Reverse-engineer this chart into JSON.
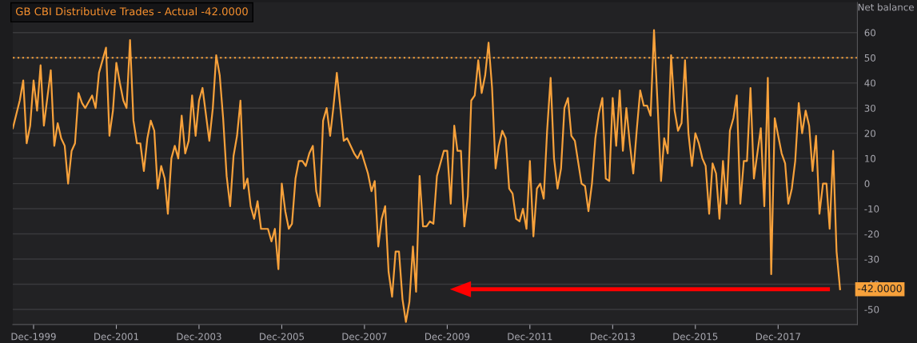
{
  "chart_data": {
    "type": "line",
    "title": "GB CBI Distributive Trades - Actual -42.0000",
    "ylabel": "Net balance",
    "x": [
      "1999-06",
      "1999-08",
      "1999-09",
      "1999-10",
      "1999-11",
      "1999-12",
      "2000-01",
      "2000-02",
      "2000-03",
      "2000-05",
      "2000-06",
      "2000-07",
      "2000-08",
      "2000-09",
      "2000-10",
      "2000-11",
      "2000-12",
      "2001-01",
      "2001-02",
      "2001-03",
      "2001-05",
      "2001-06",
      "2001-07",
      "2001-09",
      "2001-10",
      "2001-11",
      "2001-12",
      "2002-01",
      "2002-02",
      "2002-03",
      "2002-04",
      "2002-05",
      "2002-06",
      "2002-07",
      "2002-08",
      "2002-09",
      "2002-10",
      "2002-11",
      "2002-12",
      "2003-01",
      "2003-02",
      "2003-03",
      "2003-04",
      "2003-05",
      "2003-06",
      "2003-07",
      "2003-08",
      "2003-09",
      "2003-10",
      "2003-11",
      "2003-12",
      "2004-01",
      "2004-03",
      "2004-04",
      "2004-05",
      "2004-06",
      "2004-07",
      "2004-08",
      "2004-09",
      "2004-10",
      "2004-11",
      "2004-12",
      "2005-01",
      "2005-02",
      "2005-03",
      "2005-04",
      "2005-05",
      "2005-06",
      "2005-07",
      "2005-08",
      "2005-09",
      "2005-10",
      "2005-11",
      "2005-12",
      "2006-01",
      "2006-02",
      "2006-03",
      "2006-04",
      "2006-05",
      "2006-06",
      "2006-07",
      "2006-08",
      "2006-09",
      "2006-10",
      "2006-11",
      "2006-12",
      "2007-01",
      "2007-02",
      "2007-03",
      "2007-04",
      "2007-06",
      "2007-07",
      "2007-09",
      "2007-10",
      "2007-11",
      "2008-01",
      "2008-02",
      "2008-03",
      "2008-04",
      "2008-05",
      "2008-06",
      "2008-07",
      "2008-08",
      "2008-09",
      "2008-10",
      "2008-11",
      "2008-12",
      "2009-01",
      "2009-02",
      "2009-03",
      "2009-04",
      "2009-05",
      "2009-06",
      "2009-07",
      "2009-08",
      "2009-09",
      "2009-11",
      "2009-12",
      "2010-01",
      "2010-02",
      "2010-03",
      "2010-04",
      "2010-05",
      "2010-06",
      "2010-07",
      "2010-08",
      "2010-09",
      "2010-10",
      "2010-11",
      "2010-12",
      "2011-01",
      "2011-02",
      "2011-03",
      "2011-04",
      "2011-05",
      "2011-06",
      "2011-07",
      "2011-08",
      "2011-09",
      "2011-10",
      "2011-11",
      "2011-12",
      "2012-01",
      "2012-02",
      "2012-03",
      "2012-04",
      "2012-05",
      "2012-06",
      "2012-07",
      "2012-08",
      "2012-09",
      "2012-10",
      "2012-11",
      "2012-12",
      "2013-01",
      "2013-03",
      "2013-04",
      "2013-05",
      "2013-06",
      "2013-07",
      "2013-08",
      "2013-09",
      "2013-10",
      "2013-11",
      "2013-12",
      "2014-01",
      "2014-02",
      "2014-03",
      "2014-04",
      "2014-05",
      "2014-06",
      "2014-07",
      "2014-08",
      "2014-09",
      "2014-10",
      "2014-11",
      "2014-12",
      "2015-01",
      "2015-02",
      "2015-03",
      "2015-04",
      "2015-05",
      "2015-06",
      "2015-07",
      "2015-08",
      "2015-09",
      "2015-10",
      "2015-11",
      "2015-12",
      "2016-01",
      "2016-02",
      "2016-03",
      "2016-04",
      "2016-05",
      "2016-06",
      "2016-07",
      "2016-08",
      "2016-09",
      "2016-10",
      "2016-11",
      "2016-12",
      "2017-01",
      "2017-02",
      "2017-03",
      "2017-04",
      "2017-05",
      "2017-07",
      "2017-08",
      "2017-09",
      "2017-10",
      "2017-11",
      "2018-01",
      "2018-02",
      "2018-03",
      "2018-04",
      "2018-05",
      "2018-06",
      "2018-07",
      "2018-08",
      "2018-09",
      "2018-10",
      "2018-11",
      "2018-12",
      "2019-01",
      "2019-02",
      "2019-03",
      "2019-04",
      "2019-05",
      "2019-06"
    ],
    "series": [
      {
        "color": "#f7a13b",
        "values": [
          22,
          33,
          41,
          16,
          23,
          41,
          29,
          47,
          23,
          45,
          15,
          24,
          18,
          15,
          0,
          13,
          16,
          36,
          32,
          30,
          35,
          30,
          44,
          54,
          19,
          29,
          48,
          40,
          33,
          30,
          57,
          25,
          16,
          16,
          5,
          18,
          25,
          21,
          -2,
          7,
          2,
          -12,
          10,
          15,
          10,
          27,
          12,
          17,
          35,
          19,
          33,
          38,
          17,
          30,
          51,
          43,
          26,
          3,
          -9,
          11,
          19,
          33,
          -2,
          2,
          -9,
          -14,
          -7,
          -18,
          -18,
          -18,
          -23,
          -18,
          -34,
          0,
          -11,
          -18,
          -16,
          2,
          9,
          9,
          7,
          12,
          15,
          -3,
          -9,
          25,
          30,
          19,
          30,
          44,
          17,
          18,
          12,
          10,
          13,
          4,
          -3,
          1,
          -25,
          -14,
          -9,
          -35,
          -45,
          -27,
          -27,
          -46,
          -55,
          -47,
          -25,
          -43,
          3,
          -17,
          -17,
          -15,
          -16,
          3,
          13,
          13,
          -8,
          23,
          13,
          13,
          -17,
          -5,
          33,
          35,
          49,
          36,
          43,
          56,
          38,
          6,
          15,
          21,
          18,
          -2,
          -4,
          -14,
          -15,
          -10,
          -18,
          9,
          -21,
          -2,
          0,
          -6,
          21,
          42,
          10,
          -2,
          6,
          30,
          34,
          19,
          17,
          0,
          -1,
          -11,
          0,
          18,
          28,
          34,
          2,
          1,
          34,
          15,
          37,
          13,
          30,
          16,
          4,
          21,
          37,
          31,
          31,
          27,
          61,
          32,
          1,
          18,
          12,
          51,
          29,
          21,
          24,
          49,
          20,
          7,
          20,
          16,
          10,
          7,
          -12,
          8,
          4,
          -14,
          9,
          -8,
          21,
          26,
          35,
          -8,
          9,
          9,
          38,
          2,
          22,
          -9,
          42,
          -36,
          26,
          12,
          8,
          -8,
          -2,
          9,
          32,
          20,
          29,
          23,
          5,
          19,
          -12,
          0,
          0,
          -18,
          13,
          -27,
          -42
        ]
      }
    ],
    "xlim": [
      "1999-06",
      "2019-11"
    ],
    "ylim": [
      -56,
      72
    ],
    "xticks": [
      {
        "value": "1999-12",
        "label": "Dec-1999"
      },
      {
        "value": "2001-12",
        "label": "Dec-2001"
      },
      {
        "value": "2003-12",
        "label": "Dec-2003"
      },
      {
        "value": "2005-12",
        "label": "Dec-2005"
      },
      {
        "value": "2007-12",
        "label": "Dec-2007"
      },
      {
        "value": "2009-12",
        "label": "Dec-2009"
      },
      {
        "value": "2011-12",
        "label": "Dec-2011"
      },
      {
        "value": "2013-12",
        "label": "Dec-2013"
      },
      {
        "value": "2015-12",
        "label": "Dec-2015"
      },
      {
        "value": "2017-12",
        "label": "Dec-2017"
      }
    ],
    "yticks": [
      -50,
      -40,
      -30,
      -20,
      -10,
      0,
      10,
      20,
      30,
      40,
      50,
      60
    ],
    "grid": "y",
    "marker": "none",
    "line_style": "solid",
    "ref_lines": [
      {
        "axis": "y",
        "value": 50,
        "color": "#f7a13b",
        "line_style": "dotted"
      }
    ],
    "annotations": [
      {
        "text": "-42.0000",
        "x": "2019-06",
        "y": -42
      }
    ]
  }
}
